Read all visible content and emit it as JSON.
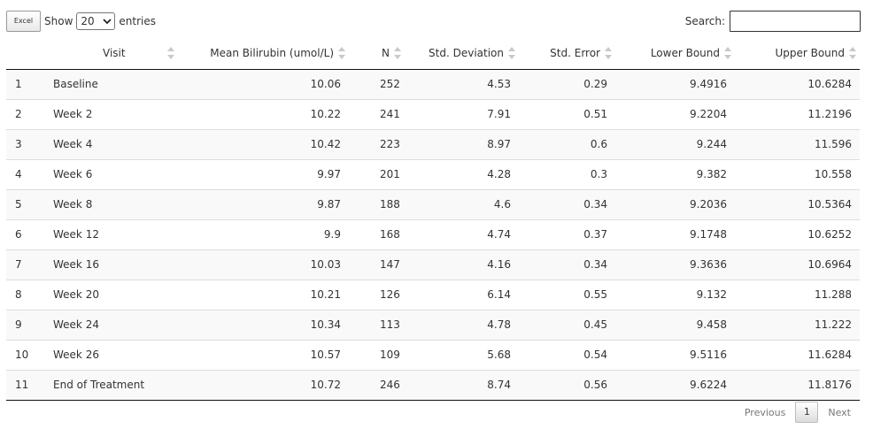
{
  "toolbar": {
    "excel_label": "Excel"
  },
  "length": {
    "show_label": "Show",
    "value": "20",
    "entries_label": "entries"
  },
  "search": {
    "label": "Search:",
    "value": ""
  },
  "columns": [
    "",
    "Visit",
    "Mean Bilirubin (umol/L)",
    "N",
    "Std. Deviation",
    "Std. Error",
    "Lower Bound",
    "Upper Bound"
  ],
  "rows": [
    [
      "1",
      "Baseline",
      "10.06",
      "252",
      "4.53",
      "0.29",
      "9.4916",
      "10.6284"
    ],
    [
      "2",
      "Week 2",
      "10.22",
      "241",
      "7.91",
      "0.51",
      "9.2204",
      "11.2196"
    ],
    [
      "3",
      "Week 4",
      "10.42",
      "223",
      "8.97",
      "0.6",
      "9.244",
      "11.596"
    ],
    [
      "4",
      "Week 6",
      "9.97",
      "201",
      "4.28",
      "0.3",
      "9.382",
      "10.558"
    ],
    [
      "5",
      "Week 8",
      "9.87",
      "188",
      "4.6",
      "0.34",
      "9.2036",
      "10.5364"
    ],
    [
      "6",
      "Week 12",
      "9.9",
      "168",
      "4.74",
      "0.37",
      "9.1748",
      "10.6252"
    ],
    [
      "7",
      "Week 16",
      "10.03",
      "147",
      "4.16",
      "0.34",
      "9.3636",
      "10.6964"
    ],
    [
      "8",
      "Week 20",
      "10.21",
      "126",
      "6.14",
      "0.55",
      "9.132",
      "11.288"
    ],
    [
      "9",
      "Week 24",
      "10.34",
      "113",
      "4.78",
      "0.45",
      "9.458",
      "11.222"
    ],
    [
      "10",
      "Week 26",
      "10.57",
      "109",
      "5.68",
      "0.54",
      "9.5116",
      "11.6284"
    ],
    [
      "11",
      "End of Treatment",
      "10.72",
      "246",
      "8.74",
      "0.56",
      "9.6224",
      "11.8176"
    ]
  ],
  "pagination": {
    "previous": "Previous",
    "current": "1",
    "next": "Next"
  }
}
